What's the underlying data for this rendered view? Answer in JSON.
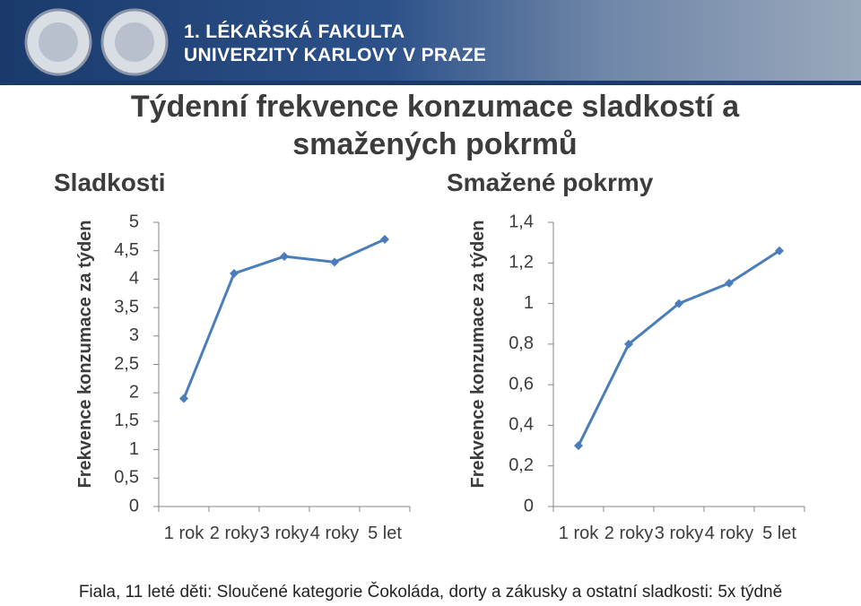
{
  "header": {
    "line1": "1. LÉKAŘSKÁ FAKULTA",
    "line2": "UNIVERZITY KARLOVY V PRAZE"
  },
  "title": "Týdenní frekvence konzumace sladkostí a smažených pokrmů",
  "footer": "Fiala, 11 leté děti: Sloučené kategorie Čokoláda, dorty a zákusky a ostatní sladkosti: 5x týdně",
  "chart_data": [
    {
      "type": "line",
      "title": "Sladkosti",
      "y_label": "Frekvence konzumace za týden",
      "categories": [
        "1 rok",
        "2 roky",
        "3 roky",
        "4 roky",
        "5 let"
      ],
      "values": [
        1.9,
        4.1,
        4.4,
        4.3,
        4.7
      ],
      "color": "#4a7ebb",
      "ylim": [
        0,
        5
      ],
      "yticks": [
        0,
        {
          "value": 0.5,
          "label": "0,5"
        },
        1,
        {
          "value": 1.5,
          "label": "1,5"
        },
        2,
        {
          "value": 2.5,
          "label": "2,5"
        },
        3,
        {
          "value": 3.5,
          "label": "3,5"
        },
        4,
        {
          "value": 4.5,
          "label": "4,5"
        },
        5
      ]
    },
    {
      "type": "line",
      "title": "Smažené pokrmy",
      "y_label": "Frekvence konzumace za týden",
      "categories": [
        "1 rok",
        "2 roky",
        "3 roky",
        "4 roky",
        "5 let"
      ],
      "values": [
        0.3,
        0.8,
        1.0,
        1.1,
        1.26
      ],
      "color": "#4a7ebb",
      "ylim": [
        0,
        1.4
      ],
      "yticks": [
        0,
        {
          "value": 0.2,
          "label": "0,2"
        },
        {
          "value": 0.4,
          "label": "0,4"
        },
        {
          "value": 0.6,
          "label": "0,6"
        },
        {
          "value": 0.8,
          "label": "0,8"
        },
        1,
        {
          "value": 1.2,
          "label": "1,2"
        },
        {
          "value": 1.4,
          "label": "1,4"
        }
      ]
    }
  ]
}
